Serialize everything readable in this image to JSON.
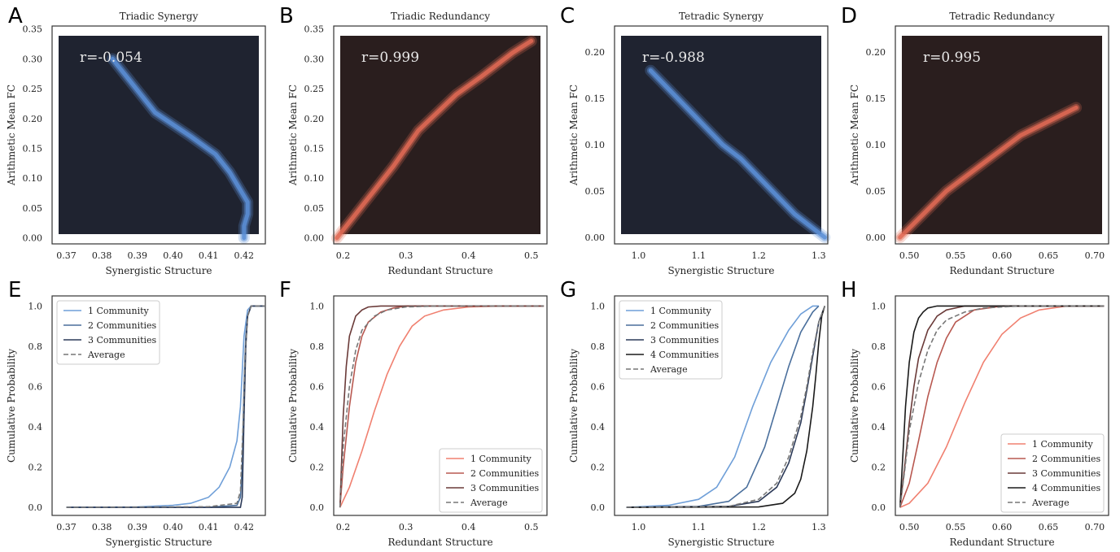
{
  "figure": {
    "panels": [
      {
        "letter": "A",
        "title": "Triadic Synergy",
        "xlabel": "Synergistic Structure",
        "ylabel": "Arithmetic Mean FC",
        "r_label": "r=-0.054",
        "xticks": [
          "0.37",
          "0.38",
          "0.39",
          "0.40",
          "0.41",
          "0.42"
        ],
        "yticks": [
          "0.00",
          "0.05",
          "0.10",
          "0.15",
          "0.20",
          "0.25",
          "0.30",
          "0.35"
        ]
      },
      {
        "letter": "B",
        "title": "Triadic Redundancy",
        "xlabel": "Redundant Structure",
        "ylabel": "Arithmetic Mean FC",
        "r_label": "r=0.999",
        "xticks": [
          "0.2",
          "0.3",
          "0.4",
          "0.5"
        ],
        "yticks": [
          "0.00",
          "0.05",
          "0.10",
          "0.15",
          "0.20",
          "0.25",
          "0.30",
          "0.35"
        ]
      },
      {
        "letter": "C",
        "title": "Tetradic Synergy",
        "xlabel": "Synergistic Structure",
        "ylabel": "Arithmetic Mean FC",
        "r_label": "r=-0.988",
        "xticks": [
          "1.0",
          "1.1",
          "1.2",
          "1.3"
        ],
        "yticks": [
          "0.00",
          "0.05",
          "0.10",
          "0.15",
          "0.20"
        ]
      },
      {
        "letter": "D",
        "title": "Tetradic Redundancy",
        "xlabel": "Redundant Structure",
        "ylabel": "Arithmetic Mean FC",
        "r_label": "r=0.995",
        "xticks": [
          "0.50",
          "0.55",
          "0.60",
          "0.65",
          "0.70"
        ],
        "yticks": [
          "0.00",
          "0.05",
          "0.10",
          "0.15",
          "0.20"
        ]
      },
      {
        "letter": "E",
        "xlabel": "Synergistic Structure",
        "ylabel": "Cumulative Probability",
        "xticks": [
          "0.37",
          "0.38",
          "0.39",
          "0.40",
          "0.41",
          "0.42"
        ],
        "yticks": [
          "0.0",
          "0.2",
          "0.4",
          "0.6",
          "0.8",
          "1.0"
        ]
      },
      {
        "letter": "F",
        "xlabel": "Redundant Structure",
        "ylabel": "Cumulative Probability",
        "xticks": [
          "0.2",
          "0.3",
          "0.4",
          "0.5"
        ],
        "yticks": [
          "0.0",
          "0.2",
          "0.4",
          "0.6",
          "0.8",
          "1.0"
        ]
      },
      {
        "letter": "G",
        "xlabel": "Synergistic Structure",
        "ylabel": "Cumulative Probability",
        "xticks": [
          "1.0",
          "1.1",
          "1.2",
          "1.3"
        ],
        "yticks": [
          "0.0",
          "0.2",
          "0.4",
          "0.6",
          "0.8",
          "1.0"
        ]
      },
      {
        "letter": "H",
        "xlabel": "Redundant Structure",
        "ylabel": "Cumulative Probability",
        "xticks": [
          "0.50",
          "0.55",
          "0.60",
          "0.65",
          "0.70"
        ],
        "yticks": [
          "0.0",
          "0.2",
          "0.4",
          "0.6",
          "0.8",
          "1.0"
        ]
      }
    ]
  },
  "colors": {
    "blue_1": "#6f9fd8",
    "blue_2": "#4a6f9c",
    "blue_3": "#2c3a58",
    "black_4": "#1a1a1a",
    "red_1": "#f08070",
    "red_2": "#b85850",
    "red_3": "#6a3a38",
    "red_4": "#1e1414",
    "average": "#777777",
    "hex_bg_blue": "#1f2330",
    "hex_bg_red": "#2a1e1e",
    "hex_blue": "#5b8fd6",
    "hex_red": "#e06a55"
  },
  "chart_data": [
    {
      "panel": "A",
      "type": "heatmap",
      "title": "Triadic Synergy",
      "xlabel": "Synergistic Structure",
      "ylabel": "Arithmetic Mean FC",
      "xlim": [
        0.366,
        0.426
      ],
      "ylim": [
        -0.01,
        0.355
      ],
      "annotation": "r=-0.054",
      "colormap": "dark-to-blue",
      "ridge": {
        "x": [
          0.383,
          0.395,
          0.405,
          0.412,
          0.416,
          0.419,
          0.421,
          0.421,
          0.42,
          0.42
        ],
        "y": [
          0.3,
          0.21,
          0.17,
          0.14,
          0.11,
          0.08,
          0.06,
          0.04,
          0.02,
          0.0
        ]
      }
    },
    {
      "panel": "B",
      "type": "heatmap",
      "title": "Triadic Redundancy",
      "xlabel": "Redundant Structure",
      "ylabel": "Arithmetic Mean FC",
      "xlim": [
        0.185,
        0.525
      ],
      "ylim": [
        -0.01,
        0.355
      ],
      "annotation": "r=0.999",
      "colormap": "dark-to-red",
      "ridge": {
        "x": [
          0.19,
          0.22,
          0.25,
          0.28,
          0.3,
          0.32,
          0.35,
          0.38,
          0.42,
          0.47,
          0.5
        ],
        "y": [
          0.0,
          0.04,
          0.08,
          0.12,
          0.15,
          0.18,
          0.21,
          0.24,
          0.27,
          0.31,
          0.33
        ]
      }
    },
    {
      "panel": "C",
      "type": "heatmap",
      "title": "Tetradic Synergy",
      "xlabel": "Synergistic Structure",
      "ylabel": "Arithmetic Mean FC",
      "xlim": [
        0.96,
        1.315
      ],
      "ylim": [
        -0.007,
        0.228
      ],
      "annotation": "r=-0.988",
      "colormap": "dark-to-blue",
      "ridge": {
        "x": [
          1.02,
          1.05,
          1.08,
          1.11,
          1.14,
          1.17,
          1.2,
          1.23,
          1.26,
          1.29,
          1.31
        ],
        "y": [
          0.18,
          0.16,
          0.14,
          0.12,
          0.1,
          0.085,
          0.065,
          0.045,
          0.025,
          0.01,
          0.0
        ]
      }
    },
    {
      "panel": "D",
      "type": "heatmap",
      "title": "Tetradic Redundancy",
      "xlabel": "Redundant Structure",
      "ylabel": "Arithmetic Mean FC",
      "xlim": [
        0.485,
        0.715
      ],
      "ylim": [
        -0.007,
        0.228
      ],
      "annotation": "r=0.995",
      "colormap": "dark-to-red",
      "ridge": {
        "x": [
          0.49,
          0.5,
          0.52,
          0.54,
          0.56,
          0.58,
          0.6,
          0.62,
          0.64,
          0.66,
          0.68
        ],
        "y": [
          0.0,
          0.01,
          0.03,
          0.05,
          0.065,
          0.08,
          0.095,
          0.11,
          0.12,
          0.13,
          0.14
        ]
      }
    },
    {
      "panel": "E",
      "type": "line",
      "xlabel": "Synergistic Structure",
      "ylabel": "Cumulative Probability",
      "xlim": [
        0.366,
        0.426
      ],
      "ylim": [
        -0.04,
        1.05
      ],
      "legend_position": "top-left",
      "series": [
        {
          "name": "1 Community",
          "color": "#6f9fd8",
          "dashed": false,
          "x": [
            0.37,
            0.39,
            0.4,
            0.405,
            0.41,
            0.413,
            0.416,
            0.418,
            0.419,
            0.42,
            0.421,
            0.422,
            0.426
          ],
          "y": [
            0,
            0.002,
            0.01,
            0.02,
            0.05,
            0.1,
            0.2,
            0.33,
            0.5,
            0.85,
            0.98,
            1,
            1
          ]
        },
        {
          "name": "2 Communities",
          "color": "#4a6f9c",
          "dashed": false,
          "x": [
            0.37,
            0.41,
            0.418,
            0.419,
            0.4195,
            0.42,
            0.4205,
            0.421,
            0.422,
            0.426
          ],
          "y": [
            0,
            0,
            0.01,
            0.05,
            0.2,
            0.6,
            0.85,
            0.95,
            1,
            1
          ]
        },
        {
          "name": "3 Communities",
          "color": "#2c3a58",
          "dashed": false,
          "x": [
            0.37,
            0.41,
            0.419,
            0.4195,
            0.42,
            0.4205,
            0.421,
            0.422,
            0.426
          ],
          "y": [
            0,
            0,
            0.0,
            0.05,
            0.45,
            0.8,
            0.95,
            1,
            1
          ]
        },
        {
          "name": "Average",
          "color": "#777777",
          "dashed": true,
          "x": [
            0.37,
            0.41,
            0.418,
            0.419,
            0.4197,
            0.4203,
            0.421,
            0.422,
            0.426
          ],
          "y": [
            0,
            0.003,
            0.02,
            0.08,
            0.4,
            0.75,
            0.95,
            1,
            1
          ]
        }
      ]
    },
    {
      "panel": "F",
      "type": "line",
      "xlabel": "Redundant Structure",
      "ylabel": "Cumulative Probability",
      "xlim": [
        0.185,
        0.525
      ],
      "ylim": [
        -0.04,
        1.05
      ],
      "legend_position": "bottom-right",
      "series": [
        {
          "name": "1 Community",
          "color": "#f08070",
          "dashed": false,
          "x": [
            0.195,
            0.21,
            0.23,
            0.25,
            0.27,
            0.29,
            0.31,
            0.33,
            0.36,
            0.4,
            0.45,
            0.52
          ],
          "y": [
            0,
            0.1,
            0.28,
            0.48,
            0.66,
            0.8,
            0.9,
            0.95,
            0.98,
            0.995,
            1,
            1
          ]
        },
        {
          "name": "2 Communities",
          "color": "#b85850",
          "dashed": false,
          "x": [
            0.195,
            0.2,
            0.21,
            0.22,
            0.23,
            0.24,
            0.26,
            0.28,
            0.3,
            0.35,
            0.52
          ],
          "y": [
            0,
            0.2,
            0.5,
            0.72,
            0.85,
            0.92,
            0.97,
            0.99,
            1,
            1,
            1
          ]
        },
        {
          "name": "3 Communities",
          "color": "#6a3a38",
          "dashed": false,
          "x": [
            0.195,
            0.2,
            0.205,
            0.21,
            0.22,
            0.23,
            0.24,
            0.26,
            0.3,
            0.52
          ],
          "y": [
            0,
            0.45,
            0.7,
            0.85,
            0.95,
            0.98,
            0.995,
            1,
            1,
            1
          ]
        },
        {
          "name": "Average",
          "color": "#777777",
          "dashed": true,
          "x": [
            0.195,
            0.2,
            0.21,
            0.22,
            0.23,
            0.25,
            0.27,
            0.3,
            0.35,
            0.52
          ],
          "y": [
            0,
            0.3,
            0.6,
            0.78,
            0.88,
            0.95,
            0.98,
            0.995,
            1,
            1
          ]
        }
      ]
    },
    {
      "panel": "G",
      "type": "line",
      "xlabel": "Synergistic Structure",
      "ylabel": "Cumulative Probability",
      "xlim": [
        0.96,
        1.315
      ],
      "ylim": [
        -0.04,
        1.05
      ],
      "legend_position": "top-left",
      "series": [
        {
          "name": "1 Community",
          "color": "#6f9fd8",
          "dashed": false,
          "x": [
            0.98,
            1.05,
            1.1,
            1.13,
            1.16,
            1.19,
            1.22,
            1.25,
            1.27,
            1.29,
            1.3
          ],
          "y": [
            0,
            0.01,
            0.04,
            0.1,
            0.25,
            0.5,
            0.72,
            0.88,
            0.96,
            1,
            1
          ]
        },
        {
          "name": "2 Communities",
          "color": "#4a6f9c",
          "dashed": false,
          "x": [
            0.98,
            1.1,
            1.15,
            1.18,
            1.21,
            1.23,
            1.25,
            1.27,
            1.29,
            1.3
          ],
          "y": [
            0,
            0.005,
            0.03,
            0.1,
            0.3,
            0.5,
            0.7,
            0.87,
            0.97,
            1
          ]
        },
        {
          "name": "3 Communities",
          "color": "#2c3a58",
          "dashed": false,
          "x": [
            0.98,
            1.15,
            1.2,
            1.23,
            1.25,
            1.27,
            1.28,
            1.29,
            1.3,
            1.31
          ],
          "y": [
            0,
            0.005,
            0.03,
            0.1,
            0.22,
            0.42,
            0.58,
            0.75,
            0.92,
            1
          ]
        },
        {
          "name": "4 Communities",
          "color": "#1a1a1a",
          "dashed": false,
          "x": [
            0.98,
            1.2,
            1.24,
            1.26,
            1.27,
            1.28,
            1.29,
            1.295,
            1.3,
            1.305,
            1.31
          ],
          "y": [
            0,
            0.002,
            0.02,
            0.07,
            0.14,
            0.28,
            0.5,
            0.65,
            0.82,
            0.95,
            1
          ]
        },
        {
          "name": "Average",
          "color": "#777777",
          "dashed": true,
          "x": [
            0.98,
            1.15,
            1.2,
            1.23,
            1.25,
            1.27,
            1.28,
            1.29,
            1.3,
            1.31
          ],
          "y": [
            0,
            0.005,
            0.04,
            0.12,
            0.25,
            0.45,
            0.6,
            0.77,
            0.92,
            1
          ]
        }
      ]
    },
    {
      "panel": "H",
      "type": "line",
      "xlabel": "Redundant Structure",
      "ylabel": "Cumulative Probability",
      "xlim": [
        0.485,
        0.715
      ],
      "ylim": [
        -0.04,
        1.05
      ],
      "legend_position": "bottom-right",
      "series": [
        {
          "name": "1 Community",
          "color": "#f08070",
          "dashed": false,
          "x": [
            0.49,
            0.5,
            0.52,
            0.54,
            0.56,
            0.58,
            0.6,
            0.62,
            0.64,
            0.67,
            0.71
          ],
          "y": [
            0,
            0.02,
            0.12,
            0.3,
            0.52,
            0.72,
            0.86,
            0.94,
            0.98,
            1,
            1
          ]
        },
        {
          "name": "2 Communities",
          "color": "#b85850",
          "dashed": false,
          "x": [
            0.49,
            0.5,
            0.51,
            0.52,
            0.53,
            0.54,
            0.55,
            0.57,
            0.6,
            0.65,
            0.71
          ],
          "y": [
            0,
            0.12,
            0.33,
            0.55,
            0.72,
            0.84,
            0.92,
            0.98,
            1,
            1,
            1
          ]
        },
        {
          "name": "3 Communities",
          "color": "#6a3a38",
          "dashed": false,
          "x": [
            0.49,
            0.495,
            0.5,
            0.505,
            0.51,
            0.52,
            0.53,
            0.54,
            0.56,
            0.6,
            0.71
          ],
          "y": [
            0,
            0.2,
            0.42,
            0.6,
            0.74,
            0.88,
            0.95,
            0.98,
            1,
            1,
            1
          ]
        },
        {
          "name": "4 Communities",
          "color": "#1a1a1a",
          "dashed": false,
          "x": [
            0.49,
            0.493,
            0.496,
            0.5,
            0.505,
            0.51,
            0.515,
            0.52,
            0.53,
            0.55,
            0.71
          ],
          "y": [
            0,
            0.25,
            0.5,
            0.72,
            0.87,
            0.94,
            0.97,
            0.99,
            1,
            1,
            1
          ]
        },
        {
          "name": "Average",
          "color": "#777777",
          "dashed": true,
          "x": [
            0.49,
            0.495,
            0.5,
            0.51,
            0.52,
            0.53,
            0.54,
            0.56,
            0.58,
            0.62,
            0.71
          ],
          "y": [
            0,
            0.18,
            0.38,
            0.62,
            0.78,
            0.88,
            0.93,
            0.97,
            0.99,
            1,
            1
          ]
        }
      ]
    }
  ]
}
